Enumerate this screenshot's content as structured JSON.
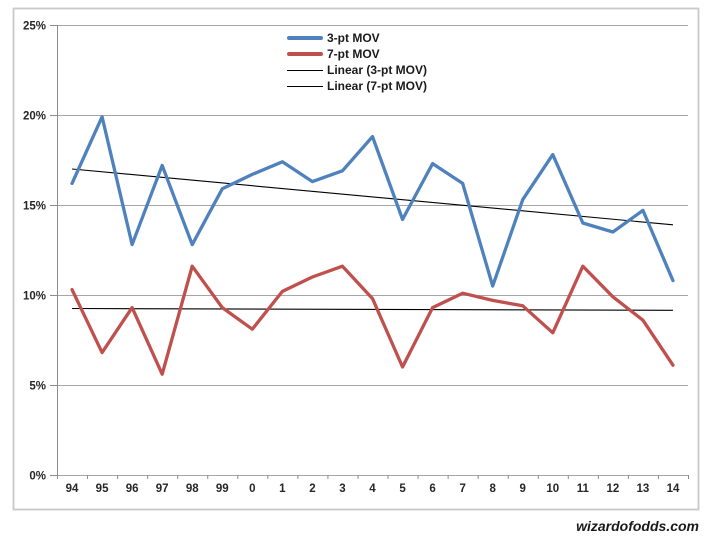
{
  "watermark": "wizardofodds.com",
  "chart_data": {
    "type": "line",
    "title": "",
    "xlabel": "",
    "ylabel": "",
    "ylim": [
      0,
      25
    ],
    "grid": true,
    "legend_position": "top-center",
    "categories": [
      "94",
      "95",
      "96",
      "97",
      "98",
      "99",
      "0",
      "1",
      "2",
      "3",
      "4",
      "5",
      "6",
      "7",
      "8",
      "9",
      "10",
      "11",
      "12",
      "13",
      "14"
    ],
    "series": [
      {
        "name": "3-pt MOV",
        "color": "#4F81BD",
        "values": [
          16.2,
          19.9,
          12.8,
          17.2,
          12.8,
          15.9,
          16.7,
          17.4,
          16.3,
          16.9,
          18.8,
          14.2,
          17.3,
          16.2,
          10.5,
          15.3,
          17.8,
          14.0,
          13.5,
          14.7,
          10.8
        ]
      },
      {
        "name": "7-pt MOV",
        "color": "#C0504D",
        "values": [
          10.3,
          6.8,
          9.3,
          5.6,
          11.6,
          9.3,
          8.1,
          10.2,
          11.0,
          11.6,
          9.8,
          6.0,
          9.3,
          10.1,
          9.7,
          9.4,
          7.9,
          11.6,
          9.9,
          8.6,
          6.1
        ]
      }
    ],
    "trendlines": [
      {
        "name": "Linear (3-pt MOV)",
        "color": "#000000",
        "start": 17.0,
        "end": 13.9
      },
      {
        "name": "Linear (7-pt MOV)",
        "color": "#000000",
        "start": 9.25,
        "end": 9.15
      }
    ],
    "legend": [
      {
        "label": "3-pt MOV",
        "color": "#4F81BD",
        "thick": true
      },
      {
        "label": "7-pt MOV",
        "color": "#C0504D",
        "thick": true
      },
      {
        "label": "Linear (3-pt MOV)",
        "color": "#000000",
        "thick": false
      },
      {
        "label": "Linear (7-pt MOV)",
        "color": "#000000",
        "thick": false
      }
    ],
    "y_ticks": [
      {
        "label": "0%",
        "value": 0
      },
      {
        "label": "5%",
        "value": 5
      },
      {
        "label": "10%",
        "value": 10
      },
      {
        "label": "15%",
        "value": 15
      },
      {
        "label": "20%",
        "value": 20
      },
      {
        "label": "25%",
        "value": 25
      }
    ],
    "colors": {
      "gridline": "#A6A6A6",
      "axis": "#8C8C8C",
      "tick_label": "#262626",
      "frame_border": "#C9C9C9",
      "background": "#FFFFFF"
    }
  }
}
